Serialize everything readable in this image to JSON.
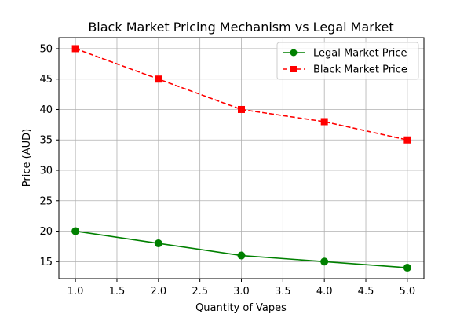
{
  "chart_data": {
    "type": "line",
    "title": "Black Market Pricing Mechanism vs Legal Market",
    "xlabel": "Quantity of Vapes",
    "ylabel": "Price (AUD)",
    "x": [
      1,
      2,
      3,
      4,
      5
    ],
    "xlim": [
      0.8,
      5.2
    ],
    "ylim": [
      12.2,
      51.8
    ],
    "xticks": [
      1.0,
      1.5,
      2.0,
      2.5,
      3.0,
      3.5,
      4.0,
      4.5,
      5.0
    ],
    "xtick_labels": [
      "1.0",
      "1.5",
      "2.0",
      "2.5",
      "3.0",
      "3.5",
      "4.0",
      "4.5",
      "5.0"
    ],
    "yticks": [
      15,
      20,
      25,
      30,
      35,
      40,
      45,
      50
    ],
    "ytick_labels": [
      "15",
      "20",
      "25",
      "30",
      "35",
      "40",
      "45",
      "50"
    ],
    "grid": true,
    "legend": "upper-right",
    "series": [
      {
        "name": "Legal Market Price",
        "values": [
          20,
          18,
          16,
          15,
          14
        ],
        "color": "#008000",
        "line_style": "solid",
        "marker": "circle"
      },
      {
        "name": "Black Market Price",
        "values": [
          50,
          45,
          40,
          38,
          35
        ],
        "color": "#ff0000",
        "line_style": "dashed",
        "marker": "square"
      }
    ]
  }
}
